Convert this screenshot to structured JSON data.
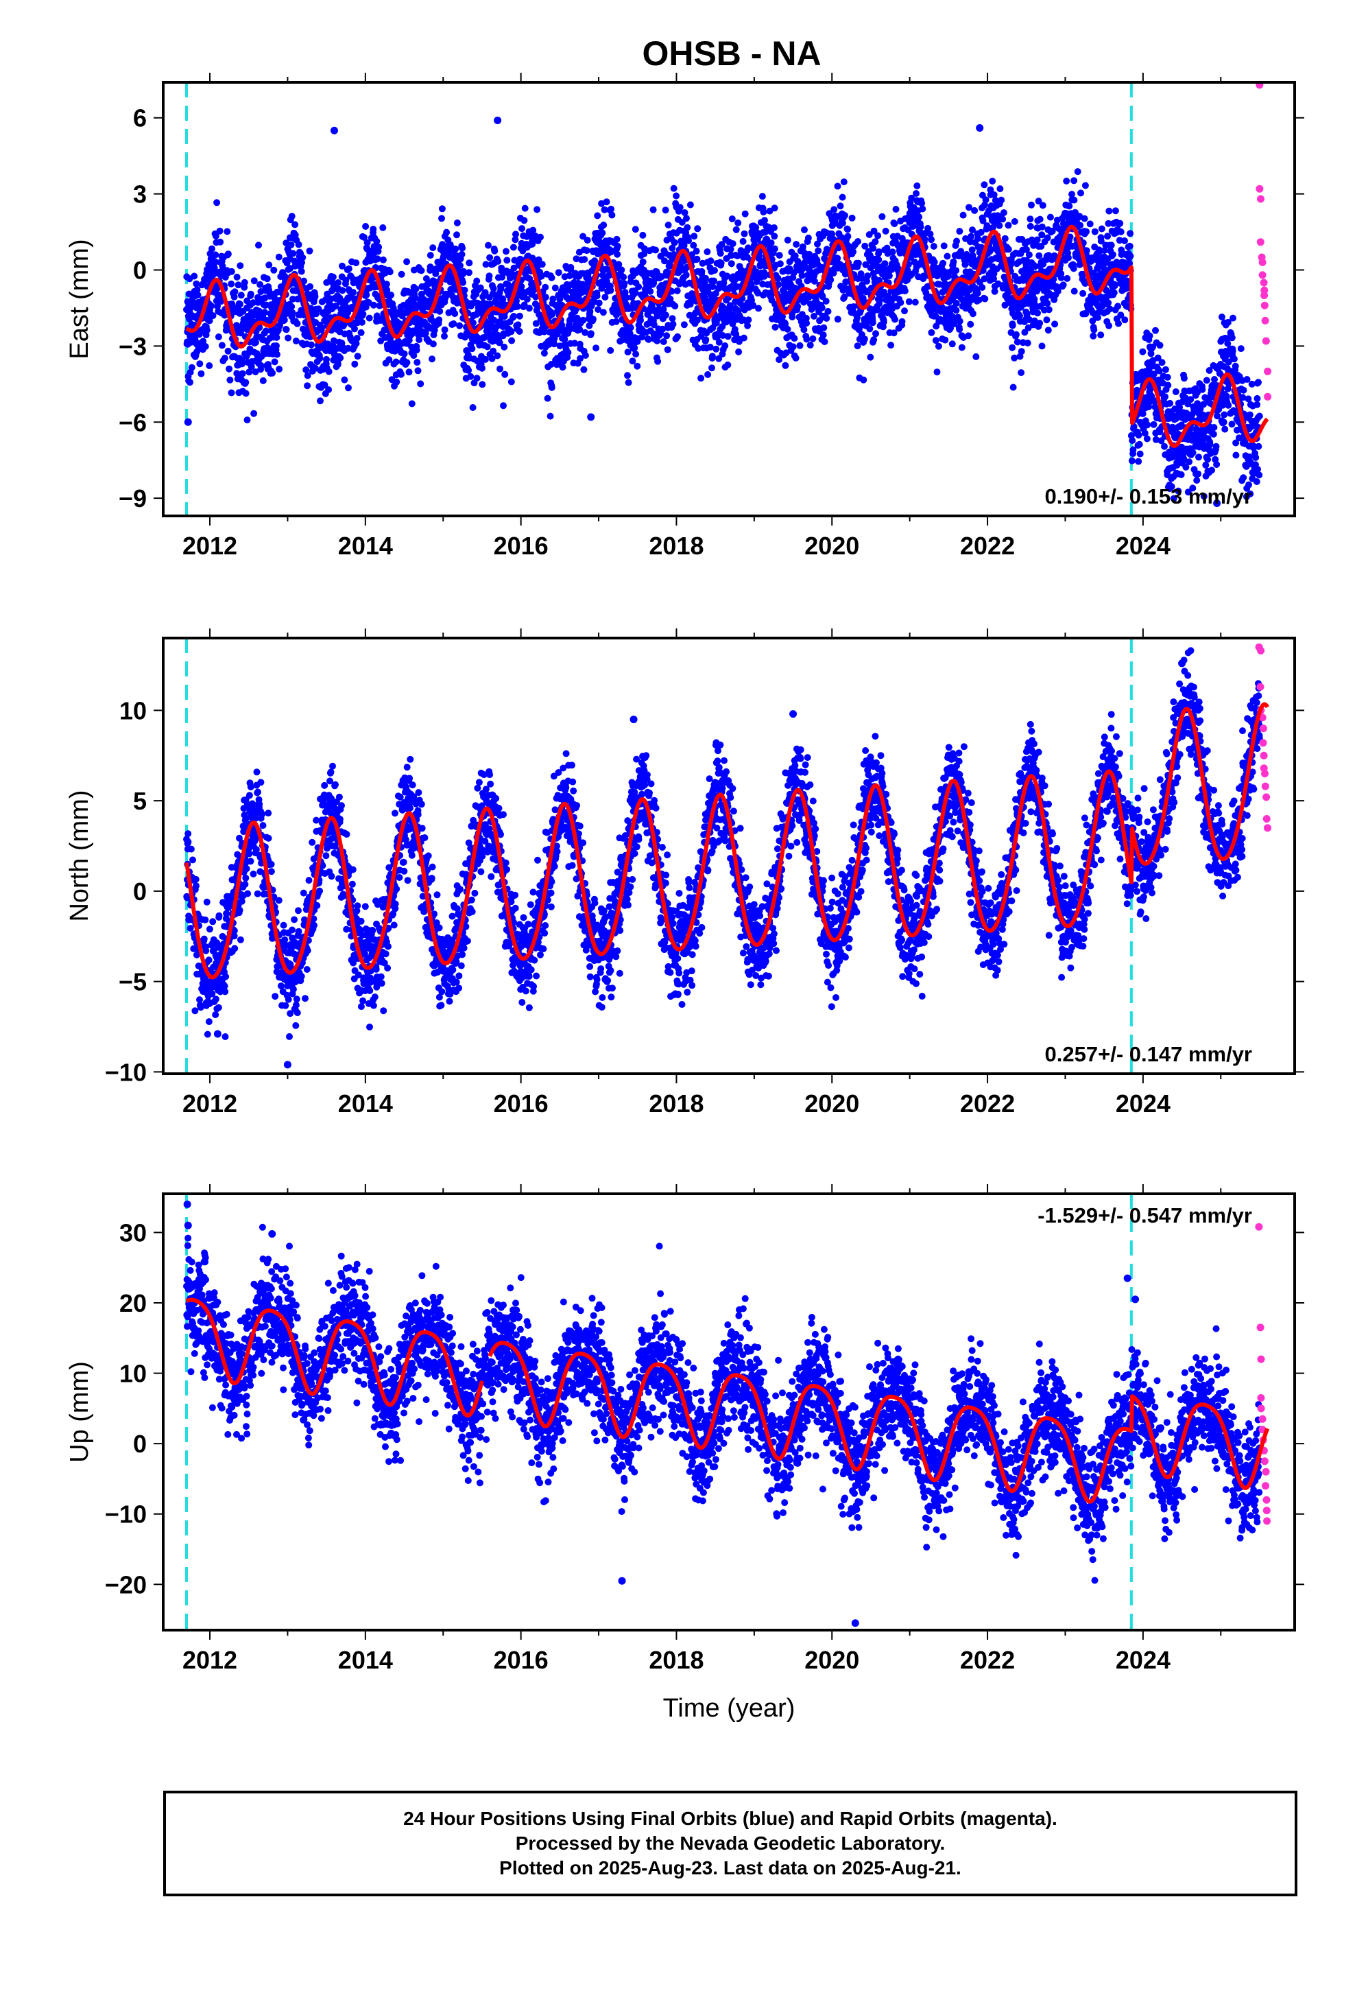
{
  "title": "OHSB - NA",
  "colors": {
    "final_orbits": "#0000ff",
    "rapid_orbits": "#ff33cc",
    "model": "#ff0000",
    "event_lines": "#22dddd"
  },
  "chart_data": [
    {
      "type": "scatter",
      "component": "east",
      "ylabel": "East (mm)",
      "xlabel": "",
      "xlim": [
        2011.4,
        2025.95
      ],
      "ylim": [
        -9.7,
        7.4
      ],
      "yticks": [
        -9,
        -6,
        -3,
        0,
        3,
        6
      ],
      "xticks": [
        2012,
        2014,
        2016,
        2018,
        2020,
        2022,
        2024
      ],
      "grid": false,
      "event_lines_x": [
        2011.7,
        2023.85
      ],
      "velocity_label": "0.190+/- 0.153 mm/yr",
      "velocity_label_position": "bottom-right",
      "model": {
        "start": 2011.7,
        "end": 2025.6,
        "step": 0.01,
        "offset_at_start": -2.0,
        "rate_mm_per_yr": 0.19,
        "annual_amplitude": 1.0,
        "annual_phase": 1.35,
        "semiannual_amplitude": 0.6,
        "semiannual_phase": 0.3,
        "offsets": [
          {
            "x": 2023.85,
            "dy": -6.2
          }
        ],
        "x_ranges": [
          [
            2011.7,
            2025.6
          ]
        ]
      },
      "final_orbits": {
        "start": 2011.7,
        "end": 2025.5,
        "daily_points": true,
        "scatter_sd_mm": 1.1,
        "extremes": [
          {
            "x": 2011.72,
            "y": -6.0
          },
          {
            "x": 2013.6,
            "y": 5.5
          },
          {
            "x": 2015.7,
            "y": 5.9
          },
          {
            "x": 2016.9,
            "y": -5.8
          },
          {
            "x": 2021.9,
            "y": 5.6
          },
          {
            "x": 2024.95,
            "y": -9.2
          }
        ]
      },
      "rapid_orbits": {
        "start": 2025.5,
        "end": 2025.6,
        "count": 25,
        "values": [
          7.3,
          3.2,
          2.8,
          1.1,
          0.5,
          0.3,
          -0.2,
          -0.5,
          -0.8,
          -1.0,
          -1.4,
          -2.0,
          -2.8,
          -4.0,
          -5.0
        ]
      }
    },
    {
      "type": "scatter",
      "component": "north",
      "ylabel": "North (mm)",
      "xlabel": "",
      "xlim": [
        2011.4,
        2025.95
      ],
      "ylim": [
        -10.1,
        14.0
      ],
      "yticks": [
        -10,
        -5,
        0,
        5,
        10
      ],
      "xticks": [
        2012,
        2014,
        2016,
        2018,
        2020,
        2022,
        2024
      ],
      "grid": false,
      "event_lines_x": [
        2011.7,
        2023.85
      ],
      "velocity_label": "0.257+/- 0.147 mm/yr",
      "velocity_label_position": "bottom-right",
      "model": {
        "start": 2011.7,
        "end": 2025.6,
        "step": 0.01,
        "offset_at_start": -1.0,
        "rate_mm_per_yr": 0.257,
        "annual_amplitude": 4.2,
        "annual_phase": -1.9,
        "semiannual_amplitude": 0.4,
        "semiannual_phase": 0.5,
        "offsets": [
          {
            "x": 2023.85,
            "dy": 3.2
          }
        ],
        "x_ranges": [
          [
            2011.7,
            2025.6
          ]
        ]
      },
      "final_orbits": {
        "start": 2011.7,
        "end": 2025.5,
        "daily_points": true,
        "scatter_sd_mm": 1.3,
        "extremes": [
          {
            "x": 2012.1,
            "y": -7.9
          },
          {
            "x": 2013.0,
            "y": -9.6
          },
          {
            "x": 2017.45,
            "y": 9.5
          },
          {
            "x": 2019.5,
            "y": 9.8
          },
          {
            "x": 2024.5,
            "y": 12.6
          }
        ]
      },
      "rapid_orbits": {
        "start": 2025.5,
        "end": 2025.6,
        "count": 25,
        "values": [
          13.5,
          13.3,
          11.3,
          10.0,
          9.6,
          9.0,
          8.2,
          7.5,
          6.8,
          6.5,
          5.8,
          5.2,
          4.0,
          3.5
        ]
      }
    },
    {
      "type": "scatter",
      "component": "up",
      "ylabel": "Up (mm)",
      "xlabel": "Time (year)",
      "xlim": [
        2011.4,
        2025.95
      ],
      "ylim": [
        -26.5,
        35.5
      ],
      "yticks": [
        -20,
        -10,
        0,
        10,
        20,
        30
      ],
      "xticks": [
        2012,
        2014,
        2016,
        2018,
        2020,
        2022,
        2024
      ],
      "grid": false,
      "event_lines_x": [
        2011.7,
        2023.85
      ],
      "velocity_label": "-1.529+/- 0.547 mm/yr",
      "velocity_label_position": "top-right",
      "model": {
        "start": 2011.7,
        "end": 2025.6,
        "step": 0.01,
        "offset_at_start": 16.0,
        "rate_mm_per_yr": -1.529,
        "annual_amplitude": 5.5,
        "annual_phase": -3.5,
        "semiannual_amplitude": 1.0,
        "semiannual_phase": 0.7,
        "offsets": [
          {
            "x": 2023.85,
            "dy": 5.0
          }
        ],
        "x_ranges": [
          [
            2011.7,
            2015.5
          ],
          [
            2015.6,
            2025.6
          ]
        ]
      },
      "final_orbits": {
        "start": 2011.7,
        "end": 2025.5,
        "daily_points": true,
        "scatter_sd_mm": 3.8,
        "extremes": [
          {
            "x": 2011.71,
            "y": 34.0
          },
          {
            "x": 2011.72,
            "y": 31.0
          },
          {
            "x": 2012.8,
            "y": 29.8
          },
          {
            "x": 2017.3,
            "y": -19.5
          },
          {
            "x": 2020.3,
            "y": -25.5
          },
          {
            "x": 2023.8,
            "y": 23.5
          },
          {
            "x": 2023.9,
            "y": 20.5
          }
        ]
      },
      "rapid_orbits": {
        "start": 2025.5,
        "end": 2025.6,
        "count": 25,
        "values": [
          30.8,
          16.5,
          12.0,
          6.5,
          5.0,
          3.5,
          2.0,
          0.5,
          -1.0,
          -2.5,
          -4.0,
          -6.0,
          -8.0,
          -9.5,
          -11.0
        ]
      }
    }
  ],
  "caption": {
    "line1": "24 Hour Positions Using Final Orbits (blue) and Rapid Orbits (magenta).",
    "line2": "Processed by the Nevada Geodetic Laboratory.",
    "line3": "Plotted on 2025-Aug-23. Last data on 2025-Aug-21."
  }
}
